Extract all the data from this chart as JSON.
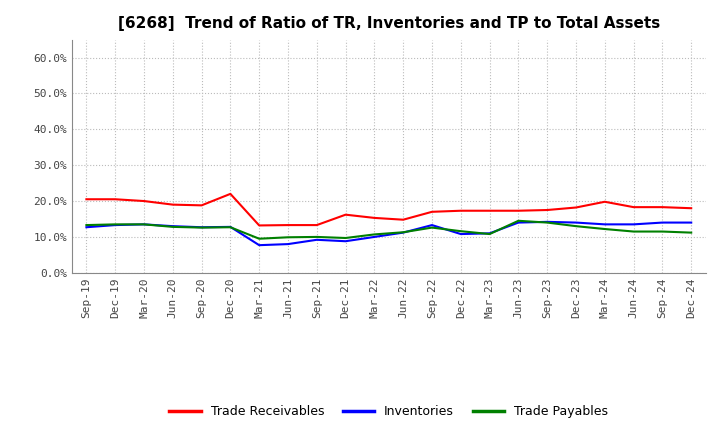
{
  "title": "[6268]  Trend of Ratio of TR, Inventories and TP to Total Assets",
  "x_labels": [
    "Sep-19",
    "Dec-19",
    "Mar-20",
    "Jun-20",
    "Sep-20",
    "Dec-20",
    "Mar-21",
    "Jun-21",
    "Sep-21",
    "Dec-21",
    "Mar-22",
    "Jun-22",
    "Sep-22",
    "Dec-22",
    "Mar-23",
    "Jun-23",
    "Sep-23",
    "Dec-23",
    "Mar-24",
    "Jun-24",
    "Sep-24",
    "Dec-24"
  ],
  "trade_receivables": [
    0.205,
    0.205,
    0.2,
    0.19,
    0.188,
    0.22,
    0.132,
    0.133,
    0.133,
    0.162,
    0.153,
    0.148,
    0.17,
    0.173,
    0.173,
    0.173,
    0.175,
    0.182,
    0.198,
    0.183,
    0.183,
    0.18
  ],
  "inventories": [
    0.127,
    0.133,
    0.135,
    0.13,
    0.127,
    0.128,
    0.077,
    0.08,
    0.092,
    0.088,
    0.1,
    0.112,
    0.133,
    0.108,
    0.11,
    0.14,
    0.142,
    0.14,
    0.135,
    0.135,
    0.14,
    0.14
  ],
  "trade_payables": [
    0.133,
    0.135,
    0.135,
    0.128,
    0.126,
    0.127,
    0.095,
    0.099,
    0.1,
    0.097,
    0.107,
    0.113,
    0.126,
    0.116,
    0.108,
    0.145,
    0.14,
    0.13,
    0.122,
    0.115,
    0.115,
    0.112
  ],
  "tr_color": "#ff0000",
  "inv_color": "#0000ff",
  "tp_color": "#008000",
  "ylim": [
    0.0,
    0.65
  ],
  "yticks": [
    0.0,
    0.1,
    0.2,
    0.3,
    0.4,
    0.5,
    0.6
  ],
  "ytick_labels": [
    "0.0%",
    "10.0%",
    "20.0%",
    "30.0%",
    "40.0%",
    "50.0%",
    "60.0%"
  ],
  "background_color": "#ffffff",
  "grid_color": "#bbbbbb",
  "title_fontsize": 11,
  "tick_fontsize": 8,
  "legend_labels": [
    "Trade Receivables",
    "Inventories",
    "Trade Payables"
  ],
  "legend_fontsize": 9
}
